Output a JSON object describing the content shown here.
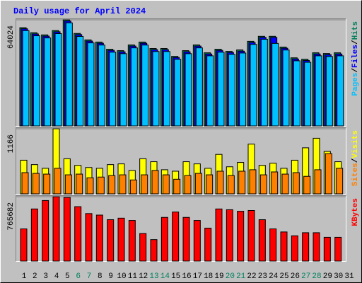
{
  "chart_data": [
    {
      "type": "bar",
      "title": "Daily usage for April 2024",
      "legend_separator": "/",
      "ylim": [
        0,
        64024
      ],
      "yticks": [
        64024
      ],
      "series": [
        {
          "name": "Hits",
          "color": "#00805c",
          "values": [
            59266,
            56238,
            54940,
            57536,
            64024,
            55805,
            51912,
            50614,
            46288,
            45423,
            48884,
            50614,
            46721,
            46721,
            41962,
            45423,
            48884,
            44125,
            46288,
            44990,
            45856,
            51047,
            54075,
            54075,
            47586,
            41097,
            40232,
            44125,
            43693,
            44125,
            null
          ]
        },
        {
          "name": "Files",
          "color": "#0000ff",
          "values": [
            58600,
            55500,
            54200,
            56800,
            63300,
            55100,
            51200,
            49900,
            45600,
            44700,
            48200,
            49900,
            46000,
            46000,
            41300,
            44700,
            48200,
            43400,
            45600,
            44300,
            45100,
            50300,
            53400,
            53400,
            46900,
            40400,
            39500,
            43400,
            43000,
            43400,
            null
          ]
        },
        {
          "name": "Pages",
          "color": "#00c0ff",
          "values": [
            57500,
            54400,
            53100,
            55700,
            62200,
            54000,
            50100,
            48800,
            44500,
            43600,
            47100,
            48800,
            44900,
            44900,
            40200,
            43600,
            47100,
            42300,
            44500,
            43200,
            44000,
            49200,
            52300,
            49800,
            45800,
            39300,
            38400,
            42300,
            41900,
            42300,
            null
          ]
        }
      ]
    },
    {
      "type": "bar",
      "legend_separator": "/",
      "ylim": [
        0,
        1166
      ],
      "yticks": [
        1166
      ],
      "series": [
        {
          "name": "Visits",
          "color": "#ffff00",
          "values": [
            603,
            524,
            458,
            1166,
            629,
            511,
            472,
            458,
            524,
            537,
            419,
            629,
            576,
            432,
            406,
            576,
            537,
            458,
            707,
            485,
            563,
            891,
            511,
            550,
            458,
            603,
            825,
            996,
            760,
            576,
            null
          ]
        },
        {
          "name": "Sites",
          "color": "#ff8000",
          "values": [
            380,
            367,
            354,
            458,
            341,
            354,
            288,
            301,
            328,
            341,
            249,
            341,
            419,
            341,
            262,
            328,
            367,
            341,
            406,
            328,
            406,
            432,
            341,
            393,
            354,
            380,
            314,
            432,
            721,
            458,
            null
          ]
        }
      ]
    },
    {
      "type": "bar",
      "ylim": [
        0,
        765682
      ],
      "yticks": [
        765682
      ],
      "categories": [
        "1",
        "2",
        "3",
        "4",
        "5",
        "6",
        "7",
        "8",
        "9",
        "10",
        "11",
        "12",
        "13",
        "14",
        "15",
        "16",
        "17",
        "18",
        "19",
        "20",
        "21",
        "22",
        "23",
        "24",
        "25",
        "26",
        "27",
        "28",
        "29",
        "30",
        "31"
      ],
      "label_colors": [
        "#000000",
        "#000000",
        "#000000",
        "#000000",
        "#000000",
        "#00805c",
        "#00805c",
        "#000000",
        "#000000",
        "#000000",
        "#000000",
        "#000000",
        "#00805c",
        "#00805c",
        "#000000",
        "#000000",
        "#000000",
        "#000000",
        "#000000",
        "#00805c",
        "#00805c",
        "#000000",
        "#000000",
        "#000000",
        "#000000",
        "#000000",
        "#00805c",
        "#00805c",
        "#000000",
        "#000000",
        "#000000"
      ],
      "series": [
        {
          "name": "KBytes",
          "color": "#ff0000",
          "values": [
            382836,
            619820,
            720085,
            765682,
            756545,
            647165,
            565130,
            546900,
            492210,
            510440,
            483095,
            328140,
            255220,
            519555,
            583360,
            519555,
            483095,
            391945,
            619820,
            610705,
            592475,
            601590,
            492210,
            382836,
            346370,
            300795,
            337255,
            337255,
            282565,
            282565,
            null
          ]
        }
      ]
    }
  ]
}
